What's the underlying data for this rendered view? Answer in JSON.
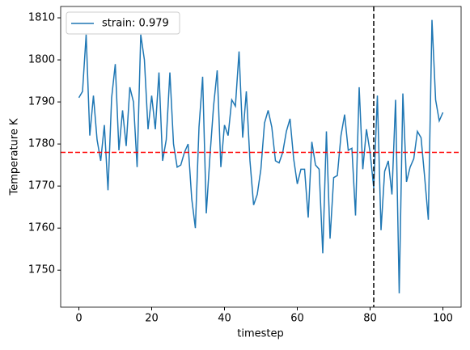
{
  "chart_data": {
    "type": "line",
    "x_label": "timestep",
    "y_label": "Temperature K",
    "x": [
      0,
      1,
      2,
      3,
      4,
      5,
      6,
      7,
      8,
      9,
      10,
      11,
      12,
      13,
      14,
      15,
      16,
      17,
      18,
      19,
      20,
      21,
      22,
      23,
      24,
      25,
      26,
      27,
      28,
      29,
      30,
      31,
      32,
      33,
      34,
      35,
      36,
      37,
      38,
      39,
      40,
      41,
      42,
      43,
      44,
      45,
      46,
      47,
      48,
      49,
      50,
      51,
      52,
      53,
      54,
      55,
      56,
      57,
      58,
      59,
      60,
      61,
      62,
      63,
      64,
      65,
      66,
      67,
      68,
      69,
      70,
      71,
      72,
      73,
      74,
      75,
      76,
      77,
      78,
      79,
      80,
      81,
      82,
      83,
      84,
      85,
      86,
      87,
      88,
      89,
      90,
      91,
      92,
      93,
      94,
      95,
      96,
      97,
      98,
      99,
      100
    ],
    "series": [
      {
        "name": "strain: 0.979",
        "color": "#1f77b4",
        "values": [
          1791,
          1792.5,
          1806,
          1782,
          1791.5,
          1781,
          1776,
          1784.5,
          1769,
          1791,
          1799,
          1778.5,
          1788,
          1779.5,
          1793.5,
          1790,
          1774.5,
          1806,
          1800,
          1783.5,
          1791.5,
          1783.5,
          1797,
          1776,
          1781,
          1797,
          1780,
          1774.5,
          1775,
          1778,
          1780,
          1767,
          1760,
          1784,
          1796,
          1763.5,
          1777,
          1789,
          1797.5,
          1774.5,
          1784.5,
          1782,
          1790.5,
          1789,
          1802,
          1781.5,
          1792.5,
          1776,
          1765.5,
          1768,
          1774,
          1785,
          1788,
          1784,
          1776,
          1775.5,
          1778,
          1783,
          1786,
          1776.5,
          1770.5,
          1774,
          1774,
          1762.5,
          1780.5,
          1775,
          1774,
          1754,
          1783,
          1757.5,
          1772,
          1772.5,
          1782,
          1787,
          1778.5,
          1779,
          1763,
          1793.5,
          1774,
          1783.5,
          1778,
          1769.5,
          1791.5,
          1759.5,
          1773.5,
          1776,
          1768,
          1790.5,
          1744.5,
          1792,
          1771,
          1774.5,
          1776.5,
          1783,
          1781.5,
          1772,
          1762,
          1809.5,
          1790.5,
          1785.5,
          1787.5
        ]
      }
    ],
    "reference_lines": [
      {
        "orientation": "horizontal",
        "value": 1778,
        "color": "red"
      },
      {
        "orientation": "vertical",
        "value": 81,
        "color": "black"
      }
    ],
    "xlim": [
      -5,
      105
    ],
    "xticks": [
      0,
      20,
      40,
      60,
      80,
      100
    ],
    "ylim": [
      1741.2,
      1812.7
    ],
    "yticks": [
      1750,
      1760,
      1770,
      1780,
      1790,
      1800,
      1810
    ],
    "legend": "upper left",
    "grid": false
  }
}
